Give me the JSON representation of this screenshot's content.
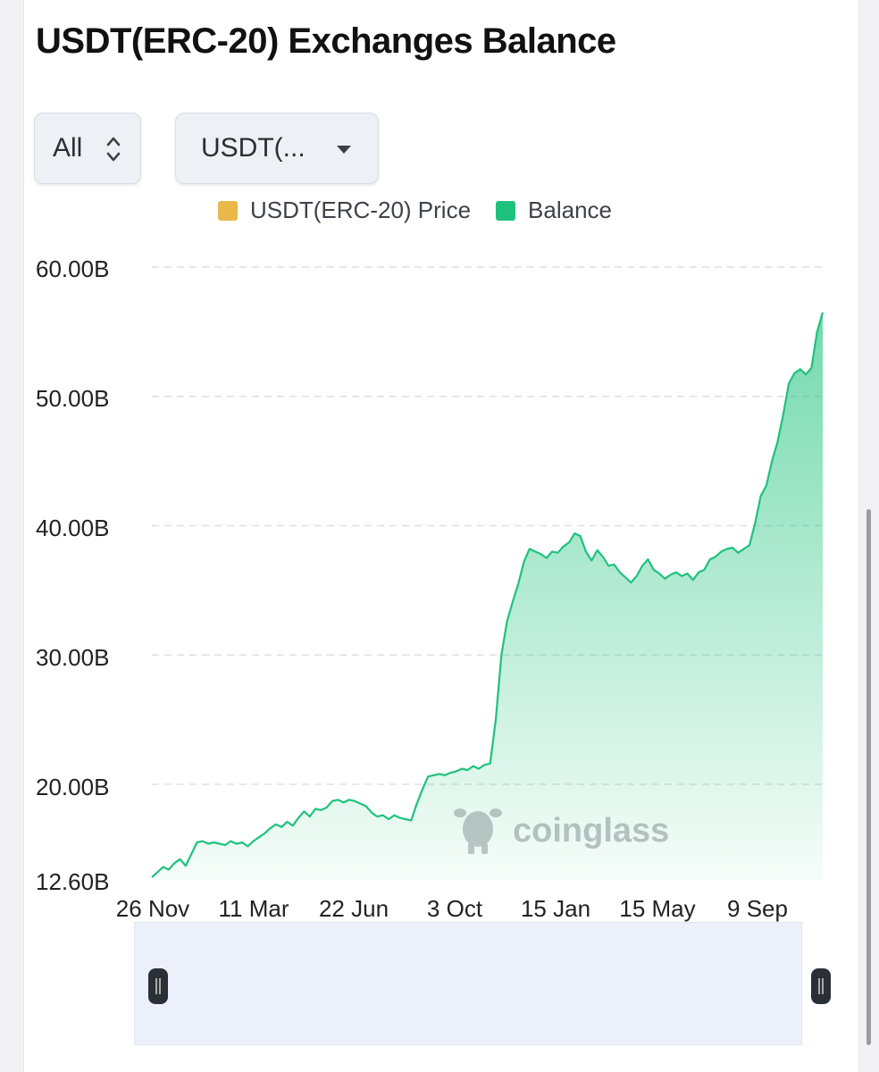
{
  "title": "USDT(ERC-20) Exchanges Balance",
  "controls": {
    "range_value": "All",
    "coin_value": "USDT(..."
  },
  "colors": {
    "price": "#e8b84a",
    "balance": "#1ec27d"
  },
  "watermark": {
    "text": "coinglass",
    "icon": "coinglass-bull-logo-icon"
  },
  "chart_data": {
    "type": "area",
    "legend": [
      "USDT(ERC-20) Price",
      "Balance"
    ],
    "legend_placement": "top-center",
    "grid": true,
    "y_ticks": [
      "60.00B",
      "50.00B",
      "40.00B",
      "30.00B",
      "20.00B",
      "12.60B"
    ],
    "x_ticks": [
      "26 Nov",
      "11 Mar",
      "22 Jun",
      "3 Oct",
      "15 Jan",
      "15 May",
      "9 Sep"
    ],
    "ylim": [
      12.6,
      60
    ],
    "series": [
      {
        "name": "Balance",
        "unit": "B",
        "values": [
          12.8,
          13.2,
          13.6,
          13.4,
          13.9,
          14.2,
          13.7,
          14.6,
          15.5,
          15.6,
          15.4,
          15.5,
          15.4,
          15.3,
          15.6,
          15.4,
          15.5,
          15.2,
          15.6,
          15.9,
          16.2,
          16.6,
          16.9,
          16.7,
          17.1,
          16.8,
          17.4,
          17.9,
          17.5,
          18.1,
          18.0,
          18.2,
          18.7,
          18.8,
          18.6,
          18.8,
          18.7,
          18.5,
          18.3,
          17.8,
          17.5,
          17.6,
          17.3,
          17.6,
          17.4,
          17.3,
          17.2,
          18.5,
          19.6,
          20.6,
          20.7,
          20.8,
          20.7,
          20.9,
          21.0,
          21.2,
          21.1,
          21.4,
          21.2,
          21.5,
          21.6,
          25.0,
          30.0,
          32.6,
          34.1,
          35.5,
          37.2,
          38.2,
          38.0,
          37.8,
          37.5,
          38.0,
          37.9,
          38.4,
          38.7,
          39.4,
          39.2,
          38.0,
          37.3,
          38.1,
          37.6,
          36.9,
          37.0,
          36.4,
          36.0,
          35.6,
          36.1,
          36.9,
          37.4,
          36.6,
          36.3,
          35.9,
          36.2,
          36.4,
          36.1,
          36.3,
          35.8,
          36.4,
          36.6,
          37.4,
          37.6,
          38.0,
          38.2,
          38.3,
          37.9,
          38.2,
          38.5,
          40.2,
          42.3,
          43.1,
          45.0,
          46.5,
          48.6,
          51.0,
          51.8,
          52.1,
          51.7,
          52.2,
          55.0,
          56.5
        ]
      }
    ]
  }
}
